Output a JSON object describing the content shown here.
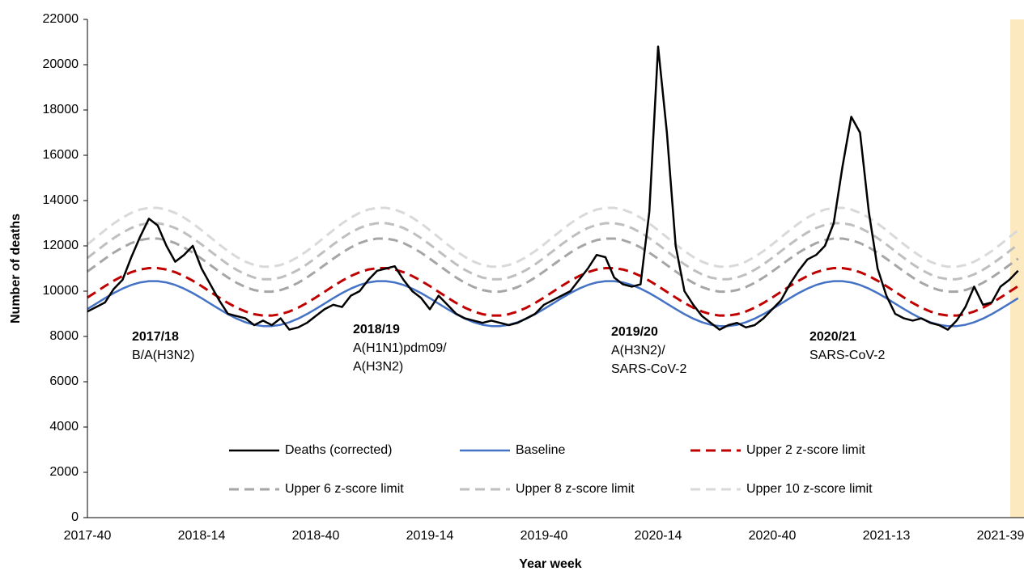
{
  "chart_data": {
    "type": "line",
    "x_label": "Year week",
    "y_label": "Number of deaths",
    "ylim": [
      0,
      22000
    ],
    "yticks": [
      0,
      2000,
      4000,
      6000,
      8000,
      10000,
      12000,
      14000,
      16000,
      18000,
      20000,
      22000
    ],
    "categories": [
      "2017-40",
      null,
      null,
      null,
      null,
      null,
      null,
      null,
      null,
      null,
      null,
      null,
      null,
      "2018-14",
      null,
      null,
      null,
      null,
      null,
      null,
      null,
      null,
      null,
      null,
      null,
      null,
      "2018-40",
      null,
      null,
      null,
      null,
      null,
      null,
      null,
      null,
      null,
      null,
      null,
      null,
      "2019-14",
      null,
      null,
      null,
      null,
      null,
      null,
      null,
      null,
      null,
      null,
      null,
      null,
      "2019-40",
      null,
      null,
      null,
      null,
      null,
      null,
      null,
      null,
      null,
      null,
      null,
      null,
      "2020-14",
      null,
      null,
      null,
      null,
      null,
      null,
      null,
      null,
      null,
      null,
      null,
      null,
      "2020-40",
      null,
      null,
      null,
      null,
      null,
      null,
      null,
      null,
      null,
      null,
      null,
      null,
      "2021-13",
      null,
      null,
      null,
      null,
      null,
      null,
      null,
      null,
      null,
      null,
      null,
      null,
      "2021-39",
      null,
      null
    ],
    "series": [
      {
        "name": "Deaths (corrected)",
        "color": "#000000",
        "dashed": false,
        "values": [
          9100,
          9300,
          9500,
          10100,
          10500,
          11500,
          12400,
          13200,
          12900,
          12000,
          11300,
          11600,
          12000,
          11000,
          10300,
          9600,
          9000,
          8900,
          8800,
          8500,
          8700,
          8500,
          8800,
          8300,
          8400,
          8600,
          8900,
          9200,
          9400,
          9300,
          9800,
          10000,
          10500,
          10900,
          11000,
          11100,
          10500,
          10000,
          9700,
          9200,
          9800,
          9400,
          9000,
          8800,
          8700,
          8600,
          8700,
          8600,
          8500,
          8600,
          8800,
          9000,
          9400,
          9600,
          9800,
          10000,
          10500,
          11000,
          11600,
          11500,
          10600,
          10300,
          10200,
          10300,
          13500,
          20800,
          17000,
          12000,
          10000,
          9400,
          8900,
          8600,
          8300,
          8500,
          8600,
          8400,
          8500,
          8800,
          9200,
          9600,
          10300,
          10900,
          11400,
          11600,
          12000,
          13000,
          15500,
          17700,
          17000,
          13500,
          11000,
          9800,
          9000,
          8800,
          8700,
          8800,
          8600,
          8500,
          8300,
          8700,
          9300,
          10200,
          9400,
          9500,
          10200,
          10500,
          10900
        ]
      },
      {
        "name": "Baseline",
        "color": "#4472c4",
        "dashed": false,
        "values": [
          9211,
          9450,
          9689,
          9915,
          10113,
          10273,
          10385,
          10443,
          10443,
          10385,
          10273,
          10113,
          9915,
          9689,
          9450,
          9211,
          8985,
          8787,
          8627,
          8515,
          8457,
          8457,
          8515,
          8627,
          8787,
          8985,
          9211,
          9450,
          9689,
          9915,
          10113,
          10273,
          10385,
          10443,
          10443,
          10385,
          10273,
          10113,
          9915,
          9689,
          9450,
          9211,
          8985,
          8787,
          8627,
          8515,
          8457,
          8457,
          8515,
          8627,
          8787,
          8985,
          9211,
          9450,
          9689,
          9915,
          10113,
          10273,
          10385,
          10443,
          10443,
          10385,
          10273,
          10113,
          9915,
          9689,
          9450,
          9211,
          8985,
          8787,
          8627,
          8515,
          8457,
          8457,
          8515,
          8627,
          8787,
          8985,
          9211,
          9450,
          9689,
          9915,
          10113,
          10273,
          10385,
          10443,
          10443,
          10385,
          10273,
          10113,
          9915,
          9689,
          9450,
          9211,
          8985,
          8787,
          8627,
          8515,
          8457,
          8457,
          8515,
          8627,
          8787,
          8985,
          9211,
          9450,
          9689
        ]
      },
      {
        "name": "Upper 2 z-score limit",
        "color": "#c00000",
        "dashed": true,
        "values": [
          9718,
          9970,
          10222,
          10460,
          10669,
          10838,
          10956,
          11017,
          11017,
          10956,
          10838,
          10669,
          10460,
          10222,
          9970,
          9718,
          9479,
          9270,
          9101,
          8983,
          8922,
          8922,
          8983,
          9101,
          9270,
          9479,
          9718,
          9970,
          10222,
          10460,
          10669,
          10838,
          10956,
          11017,
          11017,
          10956,
          10838,
          10669,
          10460,
          10222,
          9970,
          9718,
          9479,
          9270,
          9101,
          8983,
          8922,
          8922,
          8983,
          9101,
          9270,
          9479,
          9718,
          9970,
          10222,
          10460,
          10669,
          10838,
          10956,
          11017,
          11017,
          10956,
          10838,
          10669,
          10460,
          10222,
          9970,
          9718,
          9479,
          9270,
          9101,
          8983,
          8922,
          8922,
          8983,
          9101,
          9270,
          9479,
          9718,
          9970,
          10222,
          10460,
          10669,
          10838,
          10956,
          11017,
          11017,
          10956,
          10838,
          10669,
          10460,
          10222,
          9970,
          9718,
          9479,
          9270,
          9101,
          8983,
          8922,
          8922,
          8983,
          9101,
          9270,
          9479,
          9718,
          9970,
          10222
        ]
      },
      {
        "name": "Upper 6 z-score limit",
        "color": "#a6a6a6",
        "dashed": true,
        "values": [
          10869,
          11151,
          11433,
          11700,
          11933,
          12122,
          12254,
          12323,
          12323,
          12254,
          12122,
          11933,
          11700,
          11433,
          11151,
          10869,
          10602,
          10369,
          10180,
          10048,
          9979,
          9979,
          10048,
          10180,
          10369,
          10602,
          10869,
          11151,
          11433,
          11700,
          11933,
          12122,
          12254,
          12323,
          12323,
          12254,
          12122,
          11933,
          11700,
          11433,
          11151,
          10869,
          10602,
          10369,
          10180,
          10048,
          9979,
          9979,
          10048,
          10180,
          10369,
          10602,
          10869,
          11151,
          11433,
          11700,
          11933,
          12122,
          12254,
          12323,
          12323,
          12254,
          12122,
          11933,
          11700,
          11433,
          11151,
          10869,
          10602,
          10369,
          10180,
          10048,
          9979,
          9979,
          10048,
          10180,
          10369,
          10602,
          10869,
          11151,
          11433,
          11700,
          11933,
          12122,
          12254,
          12323,
          12323,
          12254,
          12122,
          11933,
          11700,
          11433,
          11151,
          10869,
          10602,
          10369,
          10180,
          10048,
          9979,
          9979,
          10048,
          10180,
          10369,
          10602,
          10869,
          11151,
          11433
        ]
      },
      {
        "name": "Upper 8 z-score limit",
        "color": "#bfbfbf",
        "dashed": true,
        "values": [
          11468,
          11765,
          12063,
          12344,
          12591,
          12790,
          12929,
          13002,
          13002,
          12929,
          12790,
          12591,
          12344,
          12063,
          11765,
          11468,
          11186,
          10940,
          10741,
          10601,
          10529,
          10529,
          10601,
          10741,
          10940,
          11186,
          11468,
          11765,
          12063,
          12344,
          12591,
          12790,
          12929,
          13002,
          13002,
          12929,
          12790,
          12591,
          12344,
          12063,
          11765,
          11468,
          11186,
          10940,
          10741,
          10601,
          10529,
          10529,
          10601,
          10741,
          10940,
          11186,
          11468,
          11765,
          12063,
          12344,
          12591,
          12790,
          12929,
          13002,
          13002,
          12929,
          12790,
          12591,
          12344,
          12063,
          11765,
          11468,
          11186,
          10940,
          10741,
          10601,
          10529,
          10529,
          10601,
          10741,
          10940,
          11186,
          11468,
          11765,
          12063,
          12344,
          12591,
          12790,
          12929,
          13002,
          13002,
          12929,
          12790,
          12591,
          12344,
          12063,
          11765,
          11468,
          11186,
          10940,
          10741,
          10601,
          10529,
          10529,
          10601,
          10741,
          10940,
          11186,
          11468,
          11765,
          12063
        ]
      },
      {
        "name": "Upper 10 z-score limit",
        "color": "#d9d9d9",
        "dashed": true,
        "values": [
          12066,
          12380,
          12693,
          12989,
          13248,
          13458,
          13604,
          13680,
          13680,
          13604,
          13458,
          13248,
          12989,
          12693,
          12380,
          12066,
          11770,
          11511,
          11301,
          11155,
          11079,
          11079,
          11155,
          11301,
          11511,
          11770,
          12066,
          12380,
          12693,
          12989,
          13248,
          13458,
          13604,
          13680,
          13680,
          13604,
          13458,
          13248,
          12989,
          12693,
          12380,
          12066,
          11770,
          11511,
          11301,
          11155,
          11079,
          11079,
          11155,
          11301,
          11511,
          11770,
          12066,
          12380,
          12693,
          12989,
          13248,
          13458,
          13604,
          13680,
          13680,
          13604,
          13458,
          13248,
          12989,
          12693,
          12380,
          12066,
          11770,
          11511,
          11301,
          11155,
          11079,
          11079,
          11155,
          11301,
          11511,
          11770,
          12066,
          12380,
          12693,
          12989,
          13248,
          13458,
          13604,
          13680,
          13680,
          13604,
          13458,
          13248,
          12989,
          12693,
          12380,
          12066,
          11770,
          11511,
          11301,
          11155,
          11079,
          11079,
          11155,
          11301,
          11511,
          11770,
          12066,
          12380,
          12693
        ]
      }
    ],
    "annotations": [
      {
        "title": "2017/18",
        "lines": [
          "B/A(H3N2)"
        ]
      },
      {
        "title": "2018/19",
        "lines": [
          "A(H1N1)pdm09/",
          "A(H3N2)"
        ]
      },
      {
        "title": "2019/20",
        "lines": [
          "A(H3N2)/",
          "SARS-CoV-2"
        ]
      },
      {
        "title": "2020/21",
        "lines": [
          "SARS-CoV-2"
        ]
      }
    ]
  }
}
